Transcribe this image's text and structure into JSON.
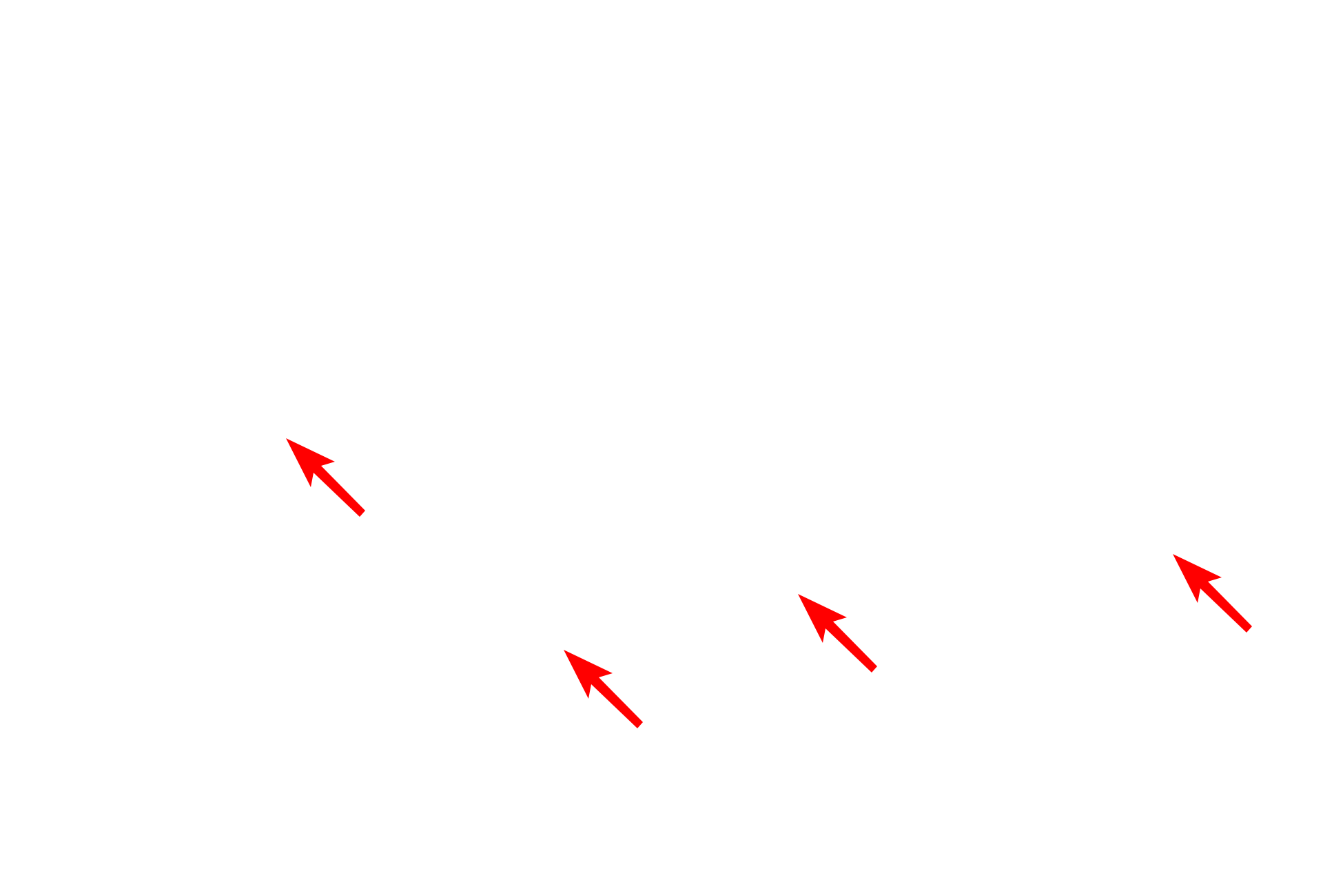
{
  "arrows": {
    "color": "#ff0000",
    "icon": "arrow-up-left-icon"
  }
}
